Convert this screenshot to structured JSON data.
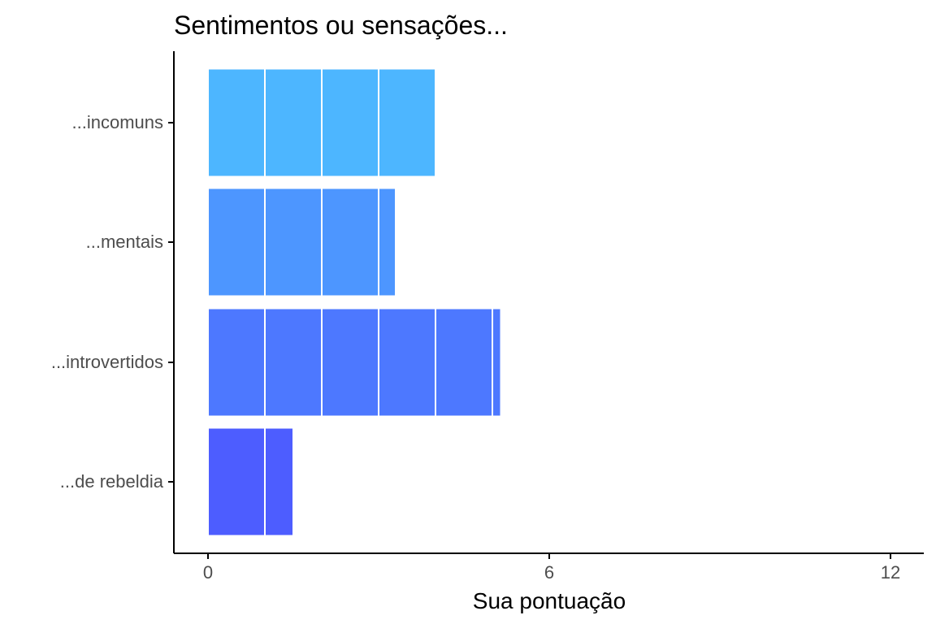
{
  "chart_data": {
    "type": "bar",
    "orientation": "horizontal",
    "title": "Sentimentos ou sensações...",
    "xlabel": "Sua pontuação",
    "ylabel": "",
    "xlim": [
      -0.6,
      12.6
    ],
    "x_ticks": [
      0,
      6,
      12
    ],
    "categories": [
      "...incomuns",
      "...mentais",
      "...introvertidos",
      "...de rebeldia"
    ],
    "values": [
      4,
      3.3,
      5.15,
      1.5
    ],
    "segment_size": 1,
    "colors": [
      "#4db6ff",
      "#4d96ff",
      "#4d78ff",
      "#4d5dff"
    ],
    "segment_divider_color": "#ffffff",
    "grid": false,
    "legend": "none"
  }
}
